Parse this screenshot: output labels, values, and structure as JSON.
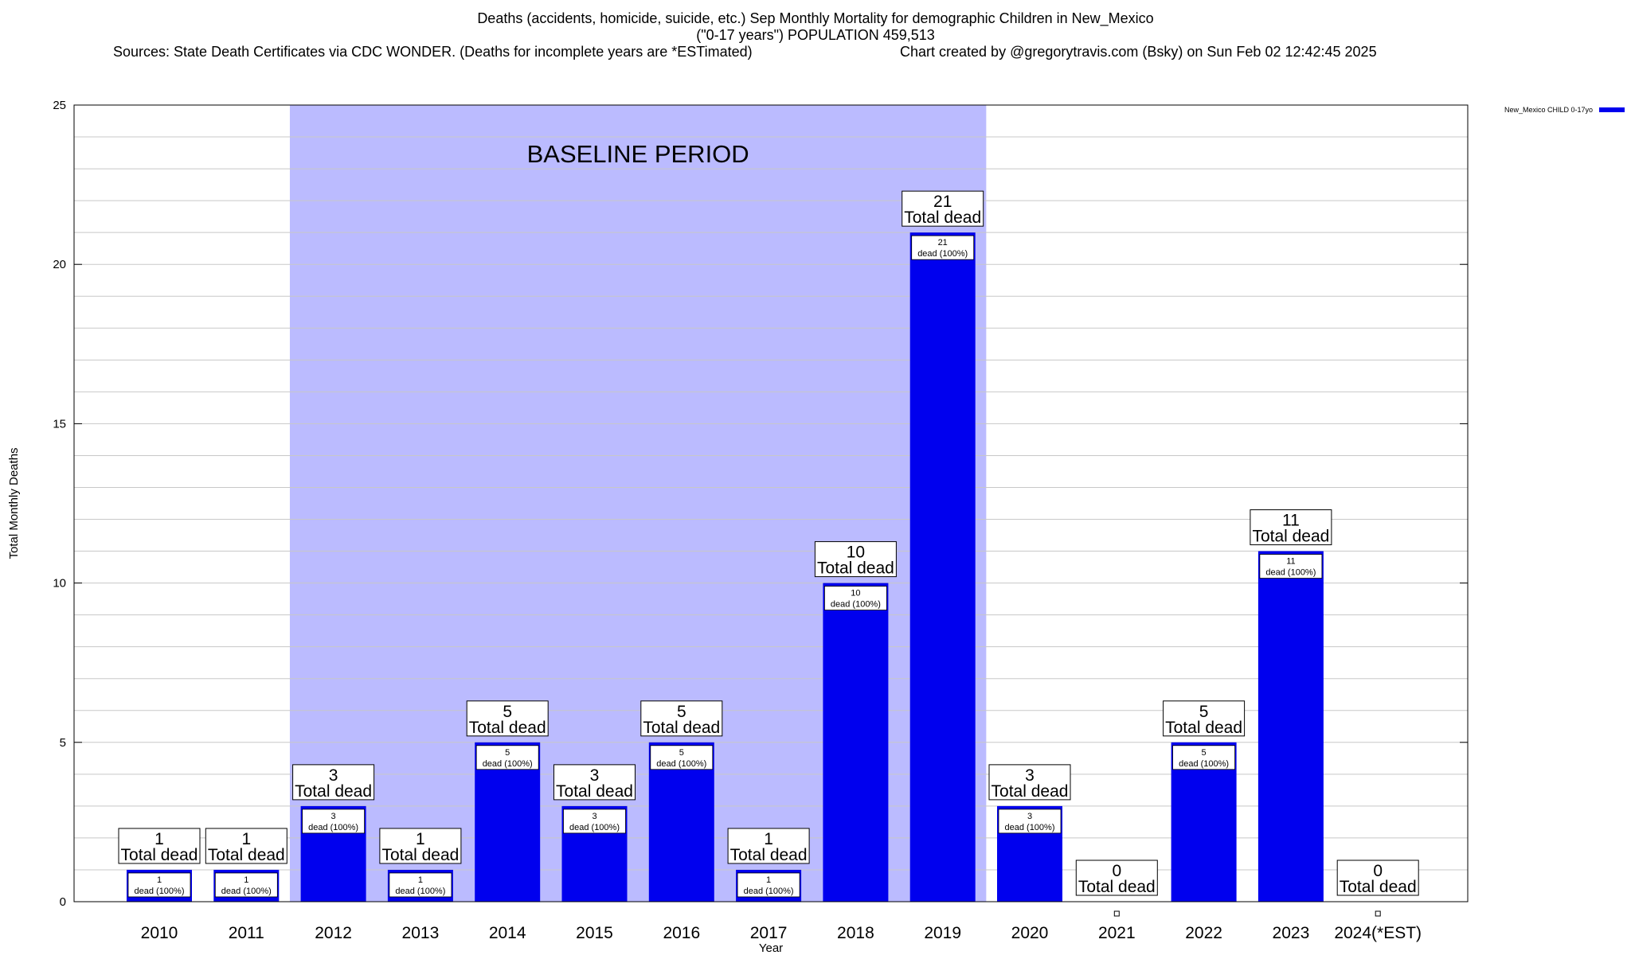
{
  "header": {
    "title_line1": "Deaths (accidents, homicide, suicide, etc.) Sep Monthly Mortality for demographic Children in New_Mexico",
    "title_line2": "(\"0-17 years\") POPULATION 459,513",
    "sources": "Sources: State Death Certificates via CDC WONDER. (Deaths for incomplete years are *ESTimated)",
    "credit": "Chart created by @gregorytravis.com (Bsky) on Sun Feb 02 12:42:45 2025"
  },
  "chart_data": {
    "type": "bar",
    "title": "Deaths (accidents, homicide, suicide, etc.) Sep Monthly Mortality for demographic Children in New_Mexico",
    "xlabel": "Year",
    "ylabel": "Total Monthly Deaths",
    "ylim": [
      0,
      25
    ],
    "yticks": [
      0,
      5,
      10,
      15,
      20,
      25
    ],
    "grid": true,
    "categories": [
      "2010",
      "2011",
      "2012",
      "2013",
      "2014",
      "2015",
      "2016",
      "2017",
      "2018",
      "2019",
      "2020",
      "2021",
      "2022",
      "2023",
      "2024(*EST)"
    ],
    "series": [
      {
        "name": "New_Mexico CHILD 0-17yo",
        "color": "#0000ee",
        "values": [
          1,
          1,
          3,
          1,
          5,
          3,
          5,
          1,
          10,
          21,
          3,
          0,
          5,
          11,
          0
        ]
      }
    ],
    "total_label": "Total dead",
    "inner_label_suffix": "dead (100%)",
    "baseline": {
      "label": "BASELINE PERIOD",
      "from": "2012",
      "to": "2019",
      "color": "#bbbbff"
    },
    "legend_position": "top-right"
  }
}
